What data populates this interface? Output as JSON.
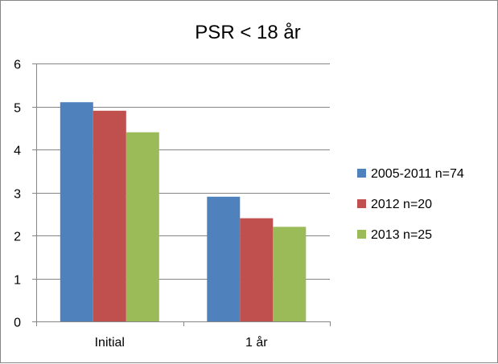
{
  "chart_data": {
    "type": "bar",
    "title": "PSR < 18 år",
    "xlabel": "",
    "ylabel": "",
    "categories": [
      "Initial",
      "1 år"
    ],
    "series": [
      {
        "name": "2005-2011 n=74",
        "values": [
          5.1,
          2.9
        ],
        "color": "#4f81bd"
      },
      {
        "name": "2012 n=20",
        "values": [
          4.9,
          2.4
        ],
        "color": "#c0504d"
      },
      {
        "name": "2013 n=25",
        "values": [
          4.4,
          2.2
        ],
        "color": "#9bbb59"
      }
    ],
    "ylim": [
      0,
      6
    ],
    "yticks": [
      "0",
      "1",
      "2",
      "3",
      "4",
      "5",
      "6"
    ],
    "grid": true,
    "legend_position": "right"
  }
}
